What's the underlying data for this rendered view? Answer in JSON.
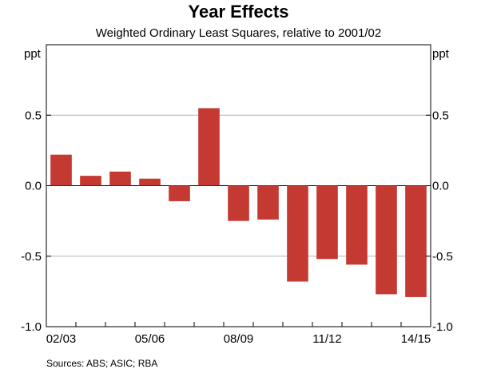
{
  "chart_data": {
    "type": "bar",
    "title": "Year Effects",
    "subtitle": "Weighted Ordinary Least Squares, relative to 2001/02",
    "ylabel": "ppt",
    "ylim": [
      -1.0,
      1.0
    ],
    "yticks": [
      -1.0,
      -0.5,
      0.0,
      0.5
    ],
    "ytick_labels": [
      "-1.0",
      "-0.5",
      "0.0",
      "0.5"
    ],
    "categories": [
      "2002/03",
      "2003/04",
      "2004/05",
      "2005/06",
      "2006/07",
      "2007/08",
      "2008/09",
      "2009/10",
      "2010/11",
      "2011/12",
      "2012/13",
      "2013/14",
      "2014/15"
    ],
    "values": [
      0.22,
      0.07,
      0.1,
      0.05,
      -0.11,
      0.55,
      -0.25,
      -0.24,
      -0.68,
      -0.52,
      -0.56,
      -0.77,
      -0.79
    ],
    "xtick_labels": [
      {
        "category_index": 0,
        "label": "02/03"
      },
      {
        "category_index": 3,
        "label": "05/06"
      },
      {
        "category_index": 6,
        "label": "08/09"
      },
      {
        "category_index": 9,
        "label": "11/12"
      },
      {
        "category_index": 12,
        "label": "14/15"
      }
    ],
    "bar_color": "#c43a32",
    "grid": true,
    "dual_y_axis": true
  },
  "source": "Sources:   ABS; ASIC; RBA"
}
